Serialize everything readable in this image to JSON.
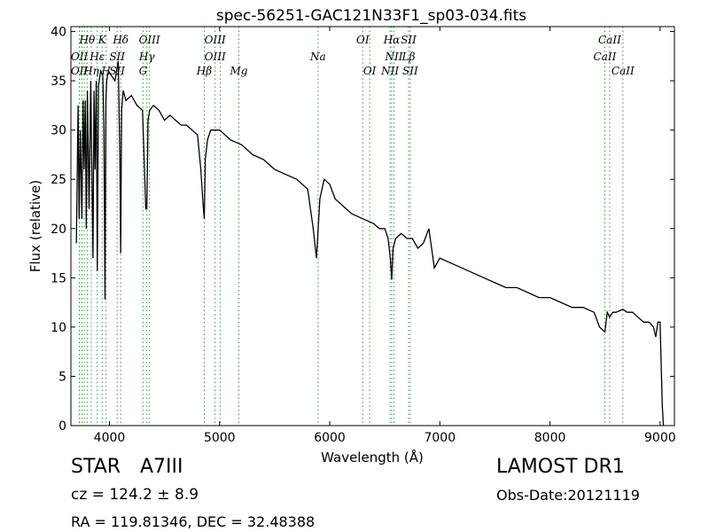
{
  "chart_data": {
    "type": "line",
    "title": "spec-56251-GAC121N33F1_sp03-034.fits",
    "xlabel": "Wavelength (Å)",
    "ylabel": "Flux (relative)",
    "xlim": [
      3650,
      9130
    ],
    "ylim": [
      0,
      40.5
    ],
    "x_ticks": [
      4000,
      5000,
      6000,
      7000,
      8000,
      9000
    ],
    "y_ticks": [
      0,
      5,
      10,
      15,
      20,
      25,
      30,
      35,
      40
    ],
    "grid": false,
    "line_color": "#000000",
    "marker_color": "#2ca02c",
    "series": [
      {
        "x": [
          3700,
          3715,
          3725,
          3735,
          3750,
          3760,
          3770,
          3780,
          3790,
          3800,
          3815,
          3830,
          3850,
          3860,
          3870,
          3880,
          3890,
          3900,
          3920,
          3940,
          3950,
          3960,
          3968,
          3975,
          3990,
          4020,
          4050,
          4080,
          4095,
          4102,
          4110,
          4125,
          4150,
          4200,
          4250,
          4300,
          4330,
          4340,
          4350,
          4365,
          4400,
          4450,
          4500,
          4550,
          4600,
          4650,
          4700,
          4750,
          4800,
          4830,
          4850,
          4861,
          4870,
          4890,
          4920,
          5000,
          5050,
          5100,
          5200,
          5300,
          5400,
          5450,
          5500,
          5600,
          5700,
          5800,
          5850,
          5880,
          5893,
          5910,
          5950,
          6000,
          6050,
          6100,
          6150,
          6200,
          6300,
          6400,
          6450,
          6500,
          6530,
          6550,
          6563,
          6575,
          6600,
          6650,
          6700,
          6750,
          6800,
          6850,
          6900,
          6950,
          7000,
          7100,
          7200,
          7300,
          7400,
          7500,
          7600,
          7700,
          7800,
          7900,
          8000,
          8100,
          8200,
          8300,
          8400,
          8450,
          8498,
          8520,
          8542,
          8570,
          8600,
          8662,
          8700,
          8750,
          8800,
          8850,
          8900,
          8940,
          8960,
          8980,
          9000,
          9010,
          9020,
          9030
        ],
        "y": [
          18.5,
          32.5,
          21,
          30,
          21,
          33,
          26,
          33,
          20,
          34,
          22,
          35,
          17,
          34,
          26,
          35,
          15.7,
          34.5,
          36,
          35.5,
          30,
          12.8,
          33,
          35,
          36,
          35.5,
          35,
          37,
          27,
          17.5,
          32,
          34,
          33,
          33.5,
          32.5,
          32,
          22,
          22,
          31,
          32,
          32.5,
          32,
          31,
          31.5,
          31,
          30.5,
          30.5,
          30,
          29.5,
          26,
          22.5,
          21,
          27,
          29,
          30,
          30,
          29.5,
          29,
          28.5,
          27.5,
          27,
          26.5,
          26,
          25.5,
          25,
          24,
          20,
          17,
          19.5,
          23,
          25,
          24.5,
          23,
          22.5,
          22,
          21.5,
          21,
          20.5,
          20,
          20,
          19,
          17,
          14.8,
          18,
          19,
          19.5,
          19,
          19,
          18,
          18.5,
          20,
          16,
          17,
          16.5,
          16,
          15.5,
          15,
          14.5,
          14,
          14,
          13.5,
          13,
          13,
          12.5,
          12,
          12,
          11.5,
          10,
          9.5,
          11.5,
          11,
          11.5,
          11.5,
          11.8,
          11.5,
          11.5,
          11,
          10.5,
          10.5,
          10,
          9,
          10.5,
          10.5,
          6,
          2,
          0
        ]
      }
    ],
    "annotations": [
      {
        "label": "Hθ",
        "x": 3798,
        "row": 1
      },
      {
        "label": "OII",
        "x": 3727,
        "row": 2
      },
      {
        "label": "OII",
        "x": 3727,
        "row": 3
      },
      {
        "label": "Hη",
        "x": 3835,
        "row": 3
      },
      {
        "label": "Hε",
        "x": 3889,
        "row": 2
      },
      {
        "label": "H",
        "x": 3970,
        "row": 3
      },
      {
        "label": "K",
        "x": 3934,
        "row": 1
      },
      {
        "label": "SII",
        "x": 4070,
        "row": 2
      },
      {
        "label": "SII",
        "x": 4070,
        "row": 3
      },
      {
        "label": "Hδ",
        "x": 4102,
        "row": 1
      },
      {
        "label": "OIII",
        "x": 4363,
        "row": 1
      },
      {
        "label": "Hγ",
        "x": 4340,
        "row": 2
      },
      {
        "label": "G",
        "x": 4305,
        "row": 3
      },
      {
        "label": "OIII",
        "x": 4959,
        "row": 1
      },
      {
        "label": "OIII",
        "x": 4959,
        "row": 2
      },
      {
        "label": "Hβ",
        "x": 4861,
        "row": 3
      },
      {
        "label": "Mg",
        "x": 5175,
        "row": 3
      },
      {
        "label": "Na",
        "x": 5894,
        "row": 2
      },
      {
        "label": "OI",
        "x": 6300,
        "row": 1
      },
      {
        "label": "OI",
        "x": 6363,
        "row": 3
      },
      {
        "label": "Hα",
        "x": 6563,
        "row": 1
      },
      {
        "label": "NII",
        "x": 6583,
        "row": 2
      },
      {
        "label": "NII",
        "x": 6548,
        "row": 3
      },
      {
        "label": "SII",
        "x": 6716,
        "row": 1
      },
      {
        "label": "Lβ",
        "x": 6716,
        "row": 2
      },
      {
        "label": "SII",
        "x": 6731,
        "row": 3
      },
      {
        "label": "CaII",
        "x": 8542,
        "row": 1
      },
      {
        "label": "CaII",
        "x": 8498,
        "row": 2
      },
      {
        "label": "CaII",
        "x": 8662,
        "row": 3
      }
    ],
    "marker_lines": [
      3727,
      3729,
      3750,
      3771,
      3798,
      3835,
      3889,
      3934,
      3970,
      4070,
      4102,
      4305,
      4340,
      4363,
      4861,
      4959,
      5007,
      5175,
      5894,
      6300,
      6363,
      6548,
      6563,
      6583,
      6716,
      6731,
      8498,
      8542,
      8662
    ]
  },
  "footer": {
    "object_type": "STAR",
    "spectral_class": "A7III",
    "survey": "LAMOST DR1",
    "redshift": "cz = 124.2 ± 8.9",
    "obs_date": "Obs-Date:20121119",
    "coords": "RA = 119.81346, DEC = 32.48388"
  }
}
